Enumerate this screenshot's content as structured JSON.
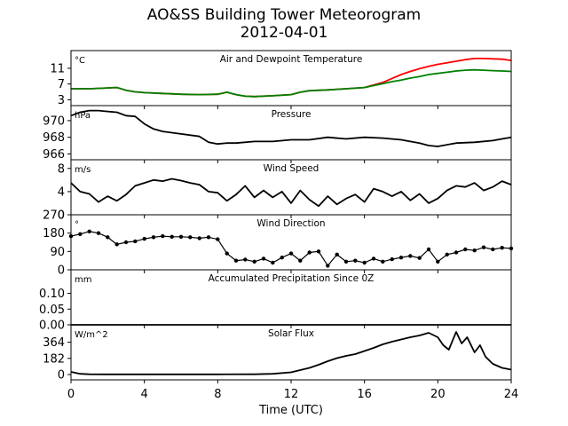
{
  "figure": {
    "title": "AO&SS Building Tower Meteorogram",
    "subtitle": "2012-04-01",
    "xlabel": "Time (UTC)",
    "xticks": [
      "0",
      "4",
      "8",
      "12",
      "16",
      "20",
      "24"
    ]
  },
  "chart_data": [
    {
      "type": "line",
      "title": "Air and Dewpoint Temperature",
      "ylabel": "°C",
      "ylim": [
        1.5,
        15.5
      ],
      "yticks": [
        3,
        7,
        11
      ],
      "xlim": [
        0,
        24
      ],
      "series": [
        {
          "name": "",
          "color": "#ff0000",
          "x": [
            0,
            1,
            2,
            2.5,
            3,
            3.5,
            4,
            5,
            6,
            7,
            8,
            8.5,
            9,
            9.5,
            10,
            11,
            12,
            12.5,
            13,
            14,
            15,
            16,
            17,
            17.5,
            18,
            18.5,
            19,
            19.5,
            20,
            20.5,
            21,
            21.5,
            22,
            22.5,
            23,
            23.5,
            24
          ],
          "y": [
            5.8,
            5.8,
            6.0,
            6.1,
            5.4,
            5.0,
            4.8,
            4.6,
            4.4,
            4.3,
            4.4,
            4.9,
            4.3,
            3.9,
            3.8,
            4.0,
            4.3,
            4.9,
            5.3,
            5.5,
            5.8,
            6.1,
            7.4,
            8.4,
            9.4,
            10.2,
            10.9,
            11.5,
            12.0,
            12.4,
            12.8,
            13.2,
            13.5,
            13.5,
            13.4,
            13.3,
            13.0
          ]
        },
        {
          "name": "",
          "color": "#008000",
          "x": [
            0,
            1,
            2,
            2.5,
            3,
            3.5,
            4,
            5,
            6,
            7,
            8,
            8.5,
            9,
            9.5,
            10,
            11,
            12,
            12.5,
            13,
            14,
            15,
            16,
            17,
            17.5,
            18,
            18.5,
            19,
            19.5,
            20,
            20.5,
            21,
            21.5,
            22,
            22.5,
            23,
            23.5,
            24
          ],
          "y": [
            5.8,
            5.8,
            6.0,
            6.1,
            5.4,
            5.0,
            4.8,
            4.6,
            4.4,
            4.3,
            4.4,
            4.9,
            4.3,
            3.9,
            3.8,
            4.0,
            4.3,
            4.9,
            5.3,
            5.5,
            5.8,
            6.1,
            7.1,
            7.6,
            8.0,
            8.5,
            8.9,
            9.4,
            9.7,
            10.0,
            10.3,
            10.5,
            10.6,
            10.5,
            10.4,
            10.3,
            10.2
          ]
        }
      ]
    },
    {
      "type": "line",
      "title": "Pressure",
      "ylabel": "hPa",
      "ylim": [
        965.3,
        971.8
      ],
      "yticks": [
        966,
        968,
        970
      ],
      "xlim": [
        0,
        24
      ],
      "series": [
        {
          "name": "",
          "color": "#000000",
          "x": [
            0,
            0.5,
            1,
            1.5,
            2,
            2.5,
            3,
            3.5,
            4,
            4.5,
            5,
            6,
            7,
            7.5,
            8,
            8.5,
            9,
            10,
            11,
            12,
            13,
            14,
            15,
            16,
            17,
            18,
            19,
            19.5,
            20,
            21,
            22,
            23,
            23.5,
            24
          ],
          "y": [
            970.6,
            971.0,
            971.2,
            971.2,
            971.1,
            971.0,
            970.6,
            970.5,
            969.6,
            969.0,
            968.7,
            968.4,
            968.1,
            967.4,
            967.2,
            967.3,
            967.3,
            967.5,
            967.5,
            967.7,
            967.7,
            968.0,
            967.8,
            968.0,
            967.9,
            967.7,
            967.3,
            967.0,
            966.9,
            967.3,
            967.4,
            967.6,
            967.8,
            968.0
          ]
        }
      ]
    },
    {
      "type": "line",
      "title": "Wind Speed",
      "ylabel": "m/s",
      "ylim": [
        0,
        9.5
      ],
      "yticks": [
        0,
        4,
        8
      ],
      "xlim": [
        0,
        24
      ],
      "series": [
        {
          "name": "",
          "color": "#000000",
          "x": [
            0,
            0.5,
            1,
            1.5,
            2,
            2.5,
            3,
            3.5,
            4,
            4.5,
            5,
            5.5,
            6,
            6.5,
            7,
            7.5,
            8,
            8.5,
            9,
            9.5,
            10,
            10.5,
            11,
            11.5,
            12,
            12.5,
            13,
            13.5,
            14,
            14.5,
            15,
            15.5,
            16,
            16.5,
            17,
            17.5,
            18,
            18.5,
            19,
            19.5,
            20,
            20.5,
            21,
            21.5,
            22,
            22.5,
            23,
            23.5,
            24
          ],
          "y": [
            5.5,
            4.0,
            3.6,
            2.2,
            3.2,
            2.4,
            3.5,
            5.0,
            5.5,
            6.0,
            5.8,
            6.2,
            5.9,
            5.5,
            5.2,
            4.0,
            3.8,
            2.4,
            3.5,
            5.0,
            3.0,
            4.2,
            3.0,
            4.0,
            2.0,
            4.2,
            2.6,
            1.5,
            3.2,
            1.8,
            2.8,
            3.5,
            2.2,
            4.5,
            4.0,
            3.2,
            4.0,
            2.5,
            3.6,
            2.0,
            2.8,
            4.2,
            5.0,
            4.8,
            5.5,
            4.2,
            4.8,
            5.8,
            5.2
          ]
        }
      ]
    },
    {
      "type": "scatter",
      "title": "Wind Direction",
      "ylabel": "°",
      "ylim": [
        0,
        270
      ],
      "yticks": [
        0,
        90,
        180,
        270
      ],
      "xlim": [
        0,
        24
      ],
      "series": [
        {
          "name": "",
          "color": "#000000",
          "x": [
            0,
            0.5,
            1,
            1.5,
            2,
            2.5,
            3,
            3.5,
            4,
            4.5,
            5,
            5.5,
            6,
            6.5,
            7,
            7.5,
            8,
            8.5,
            9,
            9.5,
            10,
            10.5,
            11,
            11.5,
            12,
            12.5,
            13,
            13.5,
            14,
            14.5,
            15,
            15.5,
            16,
            16.5,
            17,
            17.5,
            18,
            18.5,
            19,
            19.5,
            20,
            20.5,
            21,
            21.5,
            22,
            22.5,
            23,
            23.5,
            24
          ],
          "y": [
            165,
            175,
            188,
            180,
            160,
            125,
            135,
            140,
            152,
            160,
            165,
            162,
            162,
            160,
            155,
            160,
            150,
            80,
            45,
            50,
            40,
            55,
            35,
            60,
            80,
            45,
            85,
            90,
            20,
            75,
            40,
            45,
            35,
            55,
            40,
            52,
            60,
            68,
            58,
            100,
            40,
            75,
            85,
            100,
            95,
            110,
            100,
            108,
            105
          ]
        }
      ]
    },
    {
      "type": "line",
      "title": "Accumulated Precipitation Since 0Z",
      "ylabel": "mm",
      "ylim": [
        0,
        0.175
      ],
      "yticks": [
        "0.00",
        "0.05",
        "0.10"
      ],
      "xlim": [
        0,
        24
      ],
      "series": [
        {
          "name": "",
          "color": "#000000",
          "x": [
            0,
            24
          ],
          "y": [
            0,
            0
          ]
        }
      ]
    },
    {
      "type": "line",
      "title": "Solar Flux",
      "ylabel": "W/m^2",
      "ylim": [
        -60,
        560
      ],
      "yticks": [
        0,
        182,
        364
      ],
      "xlim": [
        0,
        24
      ],
      "series": [
        {
          "name": "",
          "color": "#000000",
          "x": [
            0,
            0.5,
            1,
            2,
            4,
            6,
            8,
            10,
            11,
            12,
            12.5,
            13,
            13.5,
            14,
            14.5,
            15,
            15.5,
            16,
            16.5,
            17,
            17.5,
            18,
            18.5,
            19,
            19.5,
            20,
            20.3,
            20.6,
            21,
            21.3,
            21.6,
            22,
            22.3,
            22.6,
            23,
            23.5,
            24
          ],
          "y": [
            30,
            8,
            3,
            2,
            2,
            2,
            2,
            3,
            8,
            25,
            50,
            75,
            110,
            150,
            185,
            210,
            230,
            265,
            300,
            340,
            370,
            395,
            420,
            440,
            470,
            420,
            330,
            280,
            480,
            350,
            420,
            250,
            330,
            200,
            120,
            75,
            55
          ]
        }
      ]
    }
  ]
}
